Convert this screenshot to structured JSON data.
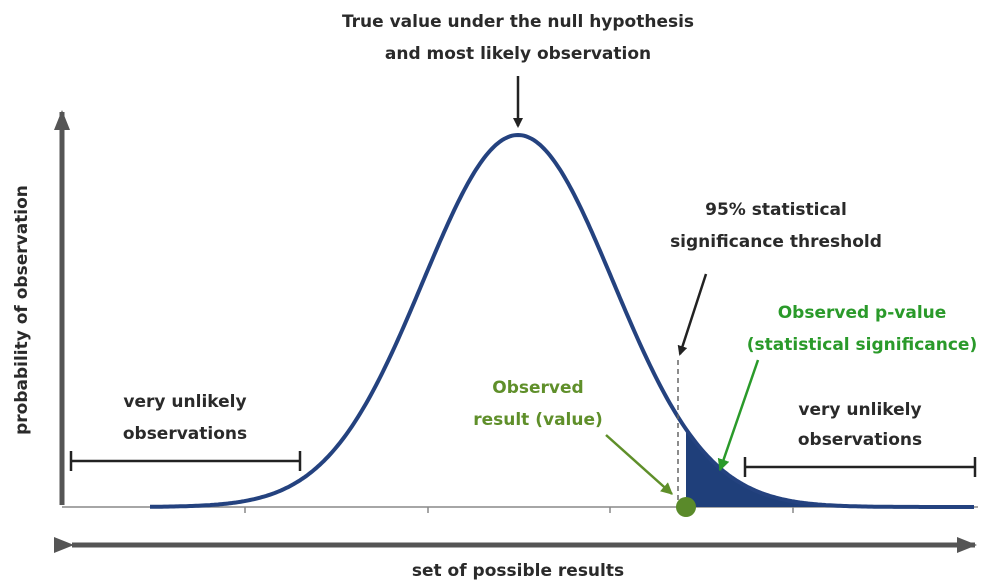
{
  "annotations": {
    "null_value": [
      "True value under the null hypothesis",
      "and most likely observation"
    ],
    "threshold": [
      "95% statistical",
      "significance threshold"
    ],
    "p_value": [
      "Observed p-value",
      "(statistical significance)"
    ],
    "observed": [
      "Observed",
      "result (value)"
    ],
    "left_tail": [
      "very unlikely",
      "observations"
    ],
    "right_tail": [
      "very unlikely",
      "observations"
    ]
  },
  "axes": {
    "y_label": "probability of observation",
    "x_label": "set of possible results"
  }
}
